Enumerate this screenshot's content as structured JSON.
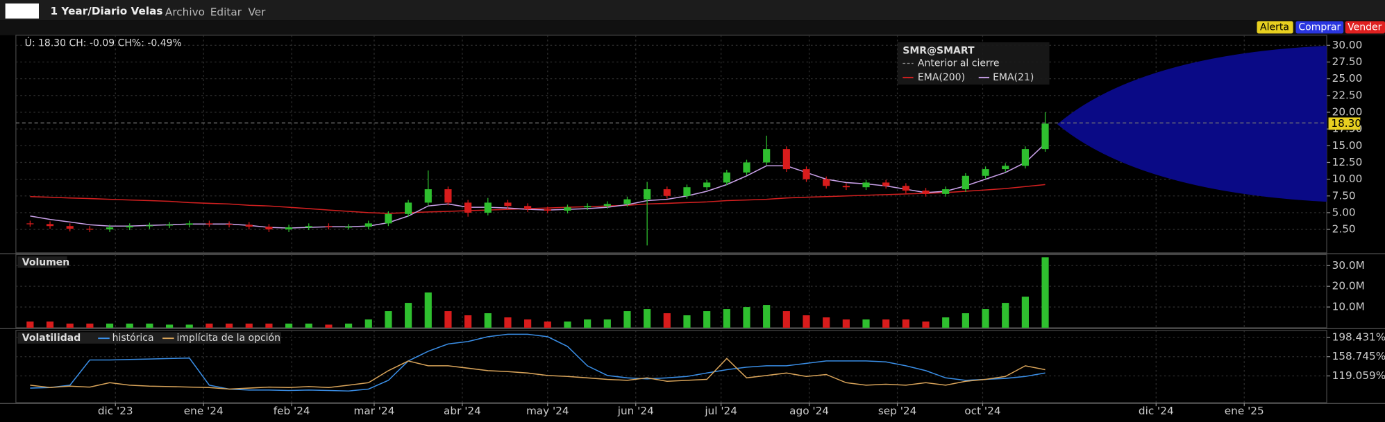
{
  "toolbar": {
    "title": "1 Year/Diario Velas",
    "menus": [
      "Archivo",
      "Editar",
      "Ver"
    ],
    "buttons": [
      "Alerta",
      "Comprar",
      "Vender"
    ]
  },
  "chart_data": [
    {
      "type": "candlestick",
      "header": "Ú: 18.30 CH: -0.09 CH%: -0.49%",
      "legend_title": "SMR@SMART",
      "x": [
        0,
        7,
        14,
        21,
        28,
        35,
        42,
        49,
        56,
        63,
        70,
        77,
        84,
        91,
        98,
        105,
        112,
        119,
        126,
        133,
        140,
        147,
        154,
        161,
        168,
        175,
        182,
        189,
        196,
        203,
        210,
        217,
        224,
        231,
        238,
        245,
        252,
        259,
        266,
        273,
        280,
        287,
        294,
        301,
        308,
        315,
        322,
        329,
        336,
        343,
        350,
        357
      ],
      "open": [
        3.4,
        3.3,
        3.0,
        2.6,
        2.5,
        2.8,
        3.0,
        3.1,
        3.2,
        3.4,
        3.3,
        3.2,
        2.9,
        2.5,
        2.8,
        3.0,
        2.9,
        2.9,
        3.4,
        4.8,
        6.5,
        8.5,
        6.5,
        5.0,
        6.5,
        6.0,
        5.5,
        5.3,
        5.8,
        6.0,
        6.3,
        7.0,
        8.5,
        7.5,
        8.8,
        9.5,
        11.0,
        12.5,
        14.5,
        11.5,
        10.0,
        9.0,
        8.8,
        9.5,
        9.0,
        8.3,
        7.8,
        8.5,
        10.5,
        11.5,
        12.0,
        14.5
      ],
      "high": [
        3.8,
        3.7,
        3.4,
        3.0,
        3.2,
        3.4,
        3.5,
        3.6,
        3.8,
        3.8,
        3.7,
        3.6,
        3.3,
        3.2,
        3.4,
        3.4,
        3.3,
        3.8,
        5.2,
        6.9,
        11.3,
        8.9,
        6.9,
        7.2,
        6.9,
        6.4,
        5.9,
        6.2,
        6.4,
        6.7,
        7.4,
        9.6,
        8.9,
        9.2,
        9.9,
        11.4,
        12.9,
        16.5,
        14.9,
        11.9,
        10.4,
        9.4,
        9.9,
        9.9,
        9.4,
        8.7,
        8.9,
        10.9,
        11.9,
        12.4,
        14.9,
        20.0
      ],
      "low": [
        2.9,
        2.6,
        2.2,
        2.1,
        2.1,
        2.4,
        2.6,
        2.7,
        2.8,
        2.9,
        2.8,
        2.5,
        2.1,
        2.1,
        2.4,
        2.5,
        2.5,
        2.5,
        3.0,
        4.4,
        6.1,
        6.1,
        4.4,
        4.6,
        5.6,
        5.1,
        4.9,
        4.9,
        5.4,
        5.6,
        5.9,
        0.1,
        7.1,
        7.1,
        8.4,
        9.1,
        10.6,
        12.1,
        11.1,
        9.6,
        8.6,
        8.4,
        8.4,
        8.6,
        7.9,
        7.4,
        7.4,
        8.1,
        10.1,
        11.1,
        11.6,
        14.1
      ],
      "close": [
        3.3,
        3.0,
        2.6,
        2.5,
        2.8,
        3.0,
        3.1,
        3.2,
        3.4,
        3.3,
        3.2,
        2.9,
        2.5,
        2.8,
        3.0,
        2.9,
        2.9,
        3.4,
        4.8,
        6.5,
        8.5,
        6.5,
        5.0,
        6.5,
        6.0,
        5.5,
        5.3,
        5.8,
        6.0,
        6.3,
        7.0,
        8.5,
        7.5,
        8.8,
        9.5,
        11.0,
        12.5,
        14.5,
        11.5,
        10.0,
        9.0,
        8.8,
        9.5,
        9.0,
        8.3,
        7.8,
        8.5,
        10.5,
        11.5,
        12.0,
        14.5,
        18.3
      ],
      "up_color": "#2fbf2f",
      "down_color": "#d81c1c",
      "series": [
        {
          "name": "EMA(200)",
          "color": "#d42020",
          "values": [
            7.4,
            7.3,
            7.2,
            7.1,
            7.0,
            6.9,
            6.8,
            6.7,
            6.5,
            6.4,
            6.3,
            6.1,
            6.0,
            5.8,
            5.6,
            5.4,
            5.2,
            5.0,
            4.9,
            5.0,
            5.1,
            5.2,
            5.3,
            5.4,
            5.5,
            5.6,
            5.7,
            5.8,
            5.9,
            6.0,
            6.1,
            6.3,
            6.4,
            6.5,
            6.6,
            6.8,
            6.9,
            7.0,
            7.2,
            7.3,
            7.4,
            7.5,
            7.6,
            7.7,
            7.8,
            7.9,
            8.0,
            8.2,
            8.4,
            8.6,
            8.9,
            9.2
          ]
        },
        {
          "name": "EMA(21)",
          "color": "#c8a0e8",
          "values": [
            4.5,
            4.0,
            3.6,
            3.2,
            3.0,
            3.0,
            3.1,
            3.2,
            3.3,
            3.3,
            3.3,
            3.1,
            2.8,
            2.7,
            2.8,
            2.9,
            2.9,
            3.0,
            3.5,
            4.5,
            6.0,
            6.3,
            5.8,
            5.8,
            5.7,
            5.5,
            5.4,
            5.5,
            5.6,
            5.8,
            6.2,
            6.8,
            7.0,
            7.5,
            8.2,
            9.2,
            10.5,
            12.0,
            12.0,
            11.0,
            10.0,
            9.5,
            9.3,
            9.0,
            8.5,
            8.0,
            8.2,
            9.0,
            10.0,
            11.0,
            12.5,
            15.3
          ]
        }
      ],
      "reference": {
        "name": "Anterior al cierre",
        "value": 18.4
      },
      "last_label": {
        "value": 18.3,
        "label": "18.30"
      },
      "xlim": [
        -5,
        456
      ],
      "ylim": [
        -1,
        31.5
      ],
      "grid": true,
      "yticks": [
        {
          "value": 2.5,
          "label": "2.50"
        },
        {
          "value": 5,
          "label": "5.00"
        },
        {
          "value": 7.5,
          "label": "7.50"
        },
        {
          "value": 10,
          "label": "10.00"
        },
        {
          "value": 12.5,
          "label": "12.50"
        },
        {
          "value": 15,
          "label": "15.00"
        },
        {
          "value": 17.5,
          "label": "17.50"
        },
        {
          "value": 20,
          "label": "20.00"
        },
        {
          "value": 22.5,
          "label": "22.50"
        },
        {
          "value": 25,
          "label": "25.00"
        },
        {
          "value": 27.5,
          "label": "27.50"
        },
        {
          "value": 30,
          "label": "30.00"
        }
      ]
    },
    {
      "type": "bar",
      "title": "Volumen",
      "values": [
        3000000,
        3000000,
        2000000,
        2000000,
        2000000,
        2000000,
        2000000,
        1500000,
        1500000,
        2000000,
        2000000,
        2000000,
        2000000,
        2000000,
        2000000,
        1500000,
        2000000,
        4000000,
        8000000,
        12000000,
        17000000,
        8000000,
        6000000,
        7000000,
        5000000,
        4000000,
        3000000,
        3000000,
        4000000,
        4000000,
        8000000,
        9000000,
        7000000,
        6000000,
        8000000,
        9000000,
        10000000,
        11000000,
        8000000,
        6000000,
        5000000,
        4000000,
        4000000,
        4000000,
        4000000,
        3000000,
        5000000,
        7000000,
        9000000,
        12000000,
        15000000,
        34000000
      ],
      "ylim": [
        0,
        35300000
      ],
      "yticks": [
        {
          "value": 10000000,
          "label": "10.0M"
        },
        {
          "value": 20000000,
          "label": "20.0M"
        },
        {
          "value": 30000000,
          "label": "30.0M"
        }
      ]
    },
    {
      "type": "line",
      "title": "Volatilidad",
      "series": [
        {
          "name": "histórica",
          "color": "#3a8ee6",
          "values": [
            94,
            95,
            100,
            152,
            152,
            153,
            154,
            155,
            156,
            100,
            92,
            90,
            90,
            89,
            90,
            89,
            88,
            92,
            110,
            150,
            170,
            185,
            190,
            200,
            205,
            205,
            200,
            180,
            140,
            120,
            115,
            113,
            115,
            118,
            125,
            132,
            137,
            140,
            140,
            145,
            150,
            150,
            150,
            148,
            140,
            130,
            115,
            110,
            112,
            114,
            118,
            125
          ]
        },
        {
          "name": "implícita de la opción",
          "color": "#d9a45a",
          "values": [
            100,
            95,
            98,
            96,
            105,
            100,
            98,
            97,
            96,
            95,
            92,
            94,
            96,
            95,
            97,
            95,
            100,
            105,
            130,
            150,
            140,
            140,
            135,
            130,
            128,
            125,
            120,
            118,
            115,
            112,
            110,
            115,
            108,
            110,
            112,
            155,
            115,
            120,
            125,
            118,
            122,
            105,
            100,
            102,
            100,
            105,
            100,
            108,
            112,
            118,
            140,
            132
          ]
        }
      ],
      "ylim": [
        64,
        213
      ],
      "yticks": [
        {
          "value": 119.059,
          "label": "119.059%"
        },
        {
          "value": 158.745,
          "label": "158.745%"
        },
        {
          "value": 198.431,
          "label": "198.431%"
        }
      ],
      "xticks": [
        {
          "value": 30,
          "label": "dic '23"
        },
        {
          "value": 61,
          "label": "ene '24"
        },
        {
          "value": 92,
          "label": "feb '24"
        },
        {
          "value": 121,
          "label": "mar '24"
        },
        {
          "value": 152,
          "label": "abr '24"
        },
        {
          "value": 182,
          "label": "may '24"
        },
        {
          "value": 213,
          "label": "jun '24"
        },
        {
          "value": 243,
          "label": "jul '24"
        },
        {
          "value": 274,
          "label": "ago '24"
        },
        {
          "value": 305,
          "label": "sep '24"
        },
        {
          "value": 335,
          "label": "oct '24"
        },
        {
          "value": 396,
          "label": "dic '24"
        },
        {
          "value": 427,
          "label": "ene '25"
        }
      ]
    }
  ]
}
